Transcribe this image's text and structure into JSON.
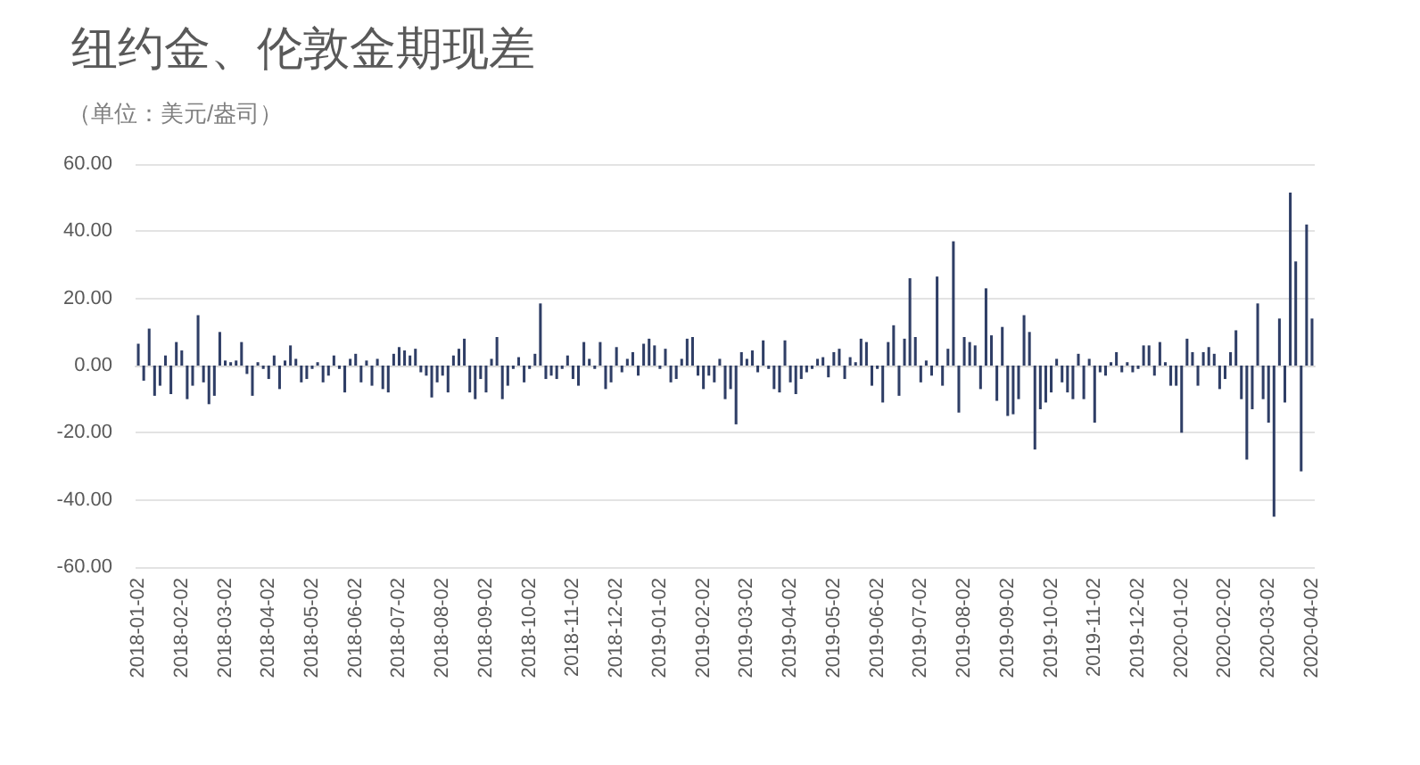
{
  "chart_data": {
    "type": "bar",
    "title": "纽约金、伦敦金期现差",
    "subtitle": "（单位：美元/盎司）",
    "categories": [
      "2018-01-02",
      null,
      null,
      null,
      null,
      null,
      null,
      null,
      "2018-02-02",
      null,
      null,
      null,
      null,
      null,
      null,
      null,
      "2018-03-02",
      null,
      null,
      null,
      null,
      null,
      null,
      null,
      "2018-04-02",
      null,
      null,
      null,
      null,
      null,
      null,
      null,
      "2018-05-02",
      null,
      null,
      null,
      null,
      null,
      null,
      null,
      "2018-06-02",
      null,
      null,
      null,
      null,
      null,
      null,
      null,
      "2018-07-02",
      null,
      null,
      null,
      null,
      null,
      null,
      null,
      "2018-08-02",
      null,
      null,
      null,
      null,
      null,
      null,
      null,
      "2018-09-02",
      null,
      null,
      null,
      null,
      null,
      null,
      null,
      "2018-10-02",
      null,
      null,
      null,
      null,
      null,
      null,
      null,
      "2018-11-02",
      null,
      null,
      null,
      null,
      null,
      null,
      null,
      "2018-12-02",
      null,
      null,
      null,
      null,
      null,
      null,
      null,
      "2019-01-02",
      null,
      null,
      null,
      null,
      null,
      null,
      null,
      "2019-02-02",
      null,
      null,
      null,
      null,
      null,
      null,
      null,
      "2019-03-02",
      null,
      null,
      null,
      null,
      null,
      null,
      null,
      "2019-04-02",
      null,
      null,
      null,
      null,
      null,
      null,
      null,
      "2019-05-02",
      null,
      null,
      null,
      null,
      null,
      null,
      null,
      "2019-06-02",
      null,
      null,
      null,
      null,
      null,
      null,
      null,
      "2019-07-02",
      null,
      null,
      null,
      null,
      null,
      null,
      null,
      "2019-08-02",
      null,
      null,
      null,
      null,
      null,
      null,
      null,
      "2019-09-02",
      null,
      null,
      null,
      null,
      null,
      null,
      null,
      "2019-10-02",
      null,
      null,
      null,
      null,
      null,
      null,
      null,
      "2019-11-02",
      null,
      null,
      null,
      null,
      null,
      null,
      null,
      "2019-12-02",
      null,
      null,
      null,
      null,
      null,
      null,
      null,
      "2020-01-02",
      null,
      null,
      null,
      null,
      null,
      null,
      null,
      "2020-02-02",
      null,
      null,
      null,
      null,
      null,
      null,
      null,
      "2020-03-02",
      null,
      null,
      null,
      null,
      null,
      null,
      null,
      "2020-04-02"
    ],
    "values": [
      6.5,
      -4.5,
      11,
      -9,
      -6,
      3,
      -8.5,
      7,
      4.5,
      -10,
      -6,
      15,
      -5,
      -11.5,
      -9,
      10,
      1.5,
      1,
      1.5,
      7,
      -2.5,
      -9,
      1,
      -1,
      -4,
      3,
      -7,
      1.5,
      6,
      2,
      -5,
      -4,
      -1,
      1,
      -5,
      -3,
      3,
      -1,
      -8,
      2,
      3.5,
      -5,
      1.5,
      -6,
      2,
      -7,
      -8,
      3.5,
      5.5,
      4.5,
      3,
      5,
      -2,
      -3,
      -9.5,
      -5,
      -3,
      -8,
      3,
      5,
      8,
      -8,
      -10,
      -4,
      -8,
      2,
      8.5,
      -10,
      -6,
      -1,
      2.5,
      -5,
      -1,
      3.5,
      18.5,
      -4,
      -3,
      -4,
      -1,
      3,
      -4,
      -6,
      7,
      2,
      -1,
      7,
      -7,
      -5,
      5.5,
      -2,
      2,
      4,
      -3,
      6.5,
      8,
      6,
      -1,
      5,
      -5,
      -4,
      2,
      8,
      8.5,
      -3,
      -7,
      -3,
      -5,
      2,
      -10,
      -7,
      -17.5,
      4,
      2,
      4.5,
      -2,
      7.5,
      -1,
      -7,
      -8,
      7.5,
      -5,
      -8.5,
      -4,
      -2,
      -1,
      2,
      2.5,
      -3.5,
      4,
      5,
      -4,
      2.5,
      1,
      8,
      7,
      -6,
      -1,
      -11,
      7,
      12,
      -9,
      8,
      26,
      8.5,
      -5,
      1.5,
      -3,
      26.5,
      -6,
      5,
      37,
      -14,
      8.5,
      7,
      6,
      -7,
      23,
      9,
      -10.5,
      11.5,
      -15,
      -14.5,
      -10,
      15,
      10,
      -25,
      -13,
      -11,
      -8,
      2,
      -5,
      -8,
      -10,
      3.5,
      -10,
      2,
      -17,
      -2,
      -3,
      1,
      4,
      -2,
      1,
      -2,
      -1,
      6,
      6,
      -3,
      7,
      1,
      -6,
      -6,
      -20,
      8,
      4,
      -6,
      4,
      5.5,
      3.5,
      -7,
      -4,
      4,
      10.5,
      -10,
      -28,
      -13,
      18.5,
      -10,
      -17,
      -45,
      14,
      -11,
      51.5,
      31,
      -31.5,
      42,
      14
    ],
    "color": "#2f3e66",
    "ylim": [
      -60,
      60
    ],
    "yticks": [
      {
        "value": -60,
        "label": "-60.00"
      },
      {
        "value": -40,
        "label": "-40.00"
      },
      {
        "value": -20,
        "label": "-20.00"
      },
      {
        "value": 0,
        "label": "0.00"
      },
      {
        "value": 20,
        "label": "20.00"
      },
      {
        "value": 40,
        "label": "40.00"
      },
      {
        "value": 60,
        "label": "60.00"
      }
    ],
    "grid": "y"
  }
}
